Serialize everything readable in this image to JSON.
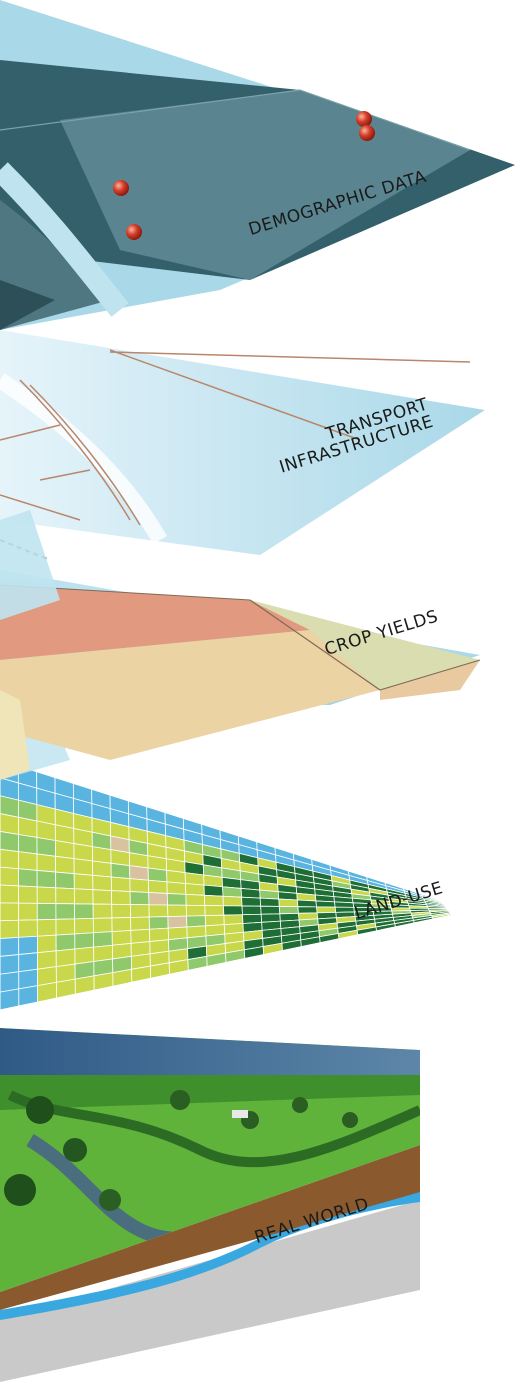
{
  "layers": [
    {
      "id": "demographic",
      "label": "DEMOGRAPHIC DATA"
    },
    {
      "id": "transport",
      "label_line1": "TRANSPORT",
      "label_line2": "INFRASTRUCTURE"
    },
    {
      "id": "crop",
      "label": "CROP YIELDS"
    },
    {
      "id": "landuse",
      "label": "LAND-USE"
    },
    {
      "id": "realworld",
      "label": "REAL WORLD"
    }
  ],
  "colors": {
    "sky_blue": "#a9d8e8",
    "demographic_dark": "#34606b",
    "demographic_mid": "#5a8590",
    "road": "#b9876b",
    "crop_salmon": "#e19a80",
    "crop_tan": "#ebd3a4",
    "crop_olive": "#d9ddb0",
    "land_blue": "#5ab4e0",
    "land_dark_green": "#1e6e35",
    "land_lime": "#c8d84a",
    "land_light_green": "#8fc96b",
    "land_beige": "#d8c2a0",
    "soil": "#8a5a2e",
    "water_line": "#39a7e0",
    "bedrock": "#c9c9c9",
    "grass": "#5fb23a"
  }
}
